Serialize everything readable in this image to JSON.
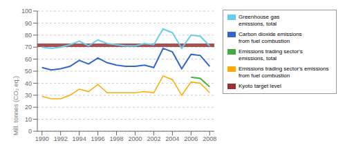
{
  "chart_data": {
    "type": "line",
    "ylabel": "Mill. tonnes (CO₂  eq.)",
    "x": [
      1990,
      1991,
      1992,
      1993,
      1994,
      1995,
      1996,
      1997,
      1998,
      1999,
      2000,
      2001,
      2002,
      2003,
      2004,
      2005,
      2006,
      2007,
      2008
    ],
    "series": [
      {
        "name": "Greenhouse gas\nemissions, total",
        "color": "#66CCEE",
        "values": [
          70,
          69,
          70,
          72,
          75,
          71,
          76,
          73,
          72,
          71,
          71,
          73,
          72,
          85,
          82,
          69,
          80,
          79,
          71
        ]
      },
      {
        "name": "Carbon dioxide emissions\nfrom fuel combustion",
        "color": "#3366CC",
        "values": [
          53,
          51,
          52,
          54,
          59,
          56,
          61,
          57,
          55,
          54,
          54,
          55,
          53,
          69,
          66,
          52,
          64,
          63,
          54
        ]
      },
      {
        "name": "Emissions trading sector's\nemissions, total",
        "color": "#44AA44",
        "values": [
          null,
          null,
          null,
          null,
          null,
          null,
          null,
          null,
          null,
          null,
          null,
          null,
          null,
          null,
          null,
          null,
          45,
          44,
          37
        ]
      },
      {
        "name": "Emissions trading sector's emissions\nfrom fuel combustion",
        "color": "#FFAA00",
        "values": [
          29,
          27,
          27,
          30,
          35,
          33,
          39,
          32,
          32,
          32,
          32,
          33,
          32,
          46,
          43,
          30,
          41,
          40,
          32
        ]
      },
      {
        "name": "Kyoto target level",
        "type": "hline",
        "color": "#993333",
        "y": 71.6
      }
    ],
    "xlim": [
      1989.5,
      2008.5
    ],
    "xticks": [
      1990,
      1992,
      1994,
      1996,
      1998,
      2000,
      2002,
      2004,
      2006,
      2008
    ],
    "ylim": [
      0,
      100
    ],
    "yticks": [
      0,
      10,
      20,
      30,
      40,
      50,
      60,
      70,
      80,
      90,
      100
    ],
    "grid": "y",
    "legend": "right"
  }
}
